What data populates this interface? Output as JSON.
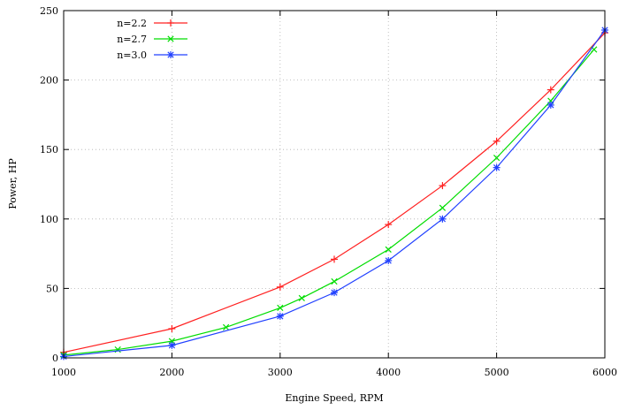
{
  "chart_data": {
    "type": "line",
    "title": "",
    "xlabel": "Engine Speed, RPM",
    "ylabel": "Power, HP",
    "xlim": [
      1000,
      6000
    ],
    "ylim": [
      0,
      250
    ],
    "xticks": [
      1000,
      2000,
      3000,
      4000,
      5000,
      6000
    ],
    "yticks": [
      0,
      50,
      100,
      150,
      200,
      250
    ],
    "grid": true,
    "legend_position": "top-left",
    "series": [
      {
        "name": "n=2.2",
        "color": "#ff2020",
        "marker": "plus",
        "x": [
          1000,
          2000,
          3000,
          3500,
          4000,
          4500,
          5000,
          5500,
          6000
        ],
        "y": [
          4,
          21,
          51,
          71,
          96,
          124,
          156,
          193,
          234
        ]
      },
      {
        "name": "n=2.7",
        "color": "#00dd00",
        "marker": "x",
        "x": [
          1000,
          1500,
          2000,
          2500,
          3000,
          3200,
          3500,
          4000,
          4500,
          5000,
          5500,
          5900
        ],
        "y": [
          2,
          6,
          12,
          22,
          36,
          43,
          55,
          78,
          108,
          144,
          185,
          222
        ]
      },
      {
        "name": "n=3.0",
        "color": "#2040ff",
        "marker": "star",
        "x": [
          1000,
          2000,
          3000,
          3500,
          4000,
          4500,
          5000,
          5500,
          6000
        ],
        "y": [
          1,
          9,
          30,
          47,
          70,
          100,
          137,
          182,
          236
        ]
      }
    ]
  }
}
